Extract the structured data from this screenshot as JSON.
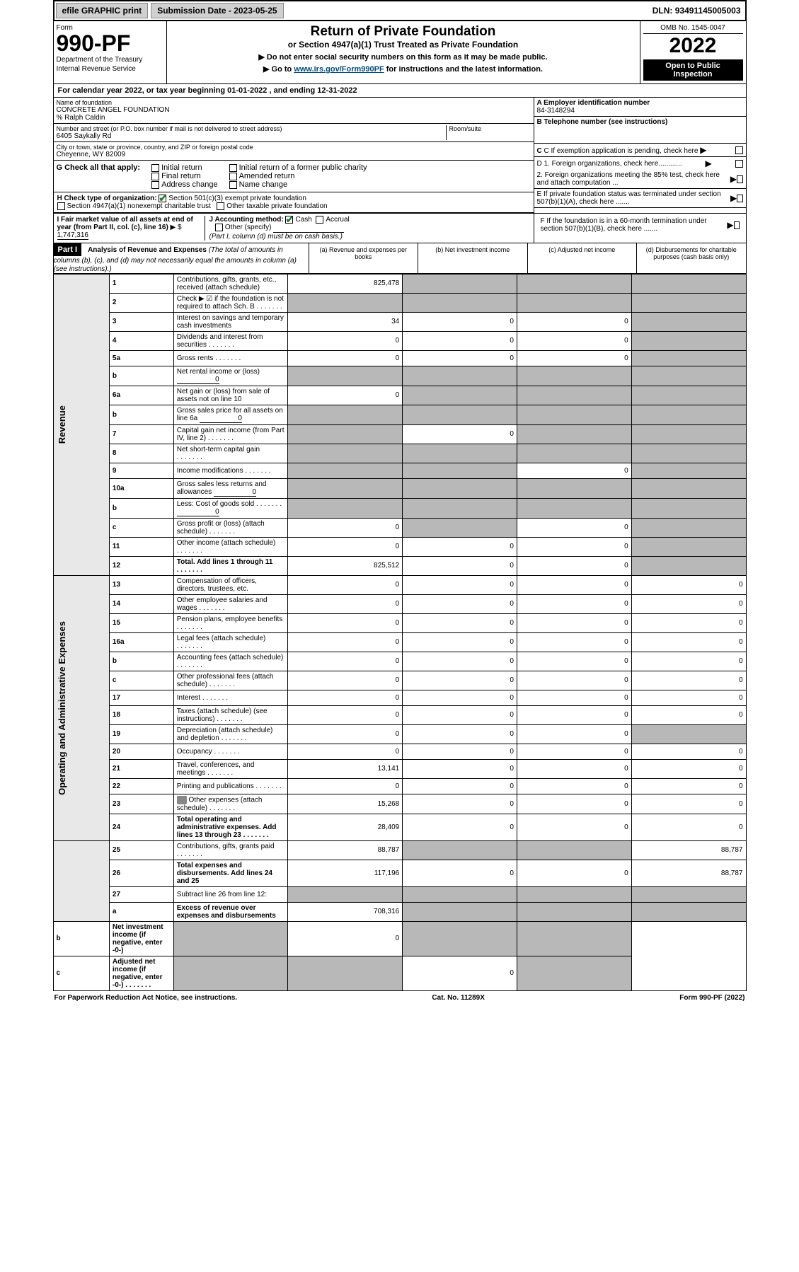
{
  "topbar": {
    "efile": "efile GRAPHIC print",
    "submission": "Submission Date - 2023-05-25",
    "dln": "DLN: 93491145005003"
  },
  "header": {
    "form_label": "Form",
    "form_number": "990-PF",
    "dept": "Department of the Treasury",
    "irs": "Internal Revenue Service",
    "title": "Return of Private Foundation",
    "subtitle": "or Section 4947(a)(1) Trust Treated as Private Foundation",
    "instr1": "▶ Do not enter social security numbers on this form as it may be made public.",
    "instr2_pre": "▶ Go to ",
    "instr2_link": "www.irs.gov/Form990PF",
    "instr2_post": " for instructions and the latest information.",
    "omb": "OMB No. 1545-0047",
    "year": "2022",
    "open": "Open to Public Inspection"
  },
  "cal_year": "For calendar year 2022, or tax year beginning 01-01-2022             , and ending 12-31-2022",
  "info": {
    "name_lbl": "Name of foundation",
    "name": "CONCRETE ANGEL FOUNDATION",
    "care": "% Ralph Caldin",
    "addr_lbl": "Number and street (or P.O. box number if mail is not delivered to street address)",
    "addr": "6405 Saykally Rd",
    "room_lbl": "Room/suite",
    "city_lbl": "City or town, state or province, country, and ZIP or foreign postal code",
    "city": "Cheyenne, WY  82009",
    "a_lbl": "A Employer identification number",
    "a_val": "84-3148294",
    "b_lbl": "B Telephone number (see instructions)",
    "c_lbl": "C If exemption application is pending, check here",
    "d1": "D 1. Foreign organizations, check here............",
    "d2": "2. Foreign organizations meeting the 85% test, check here and attach computation ...",
    "e_lbl": "E  If private foundation status was terminated under section 507(b)(1)(A), check here .......",
    "f_lbl": "F  If the foundation is in a 60-month termination under section 507(b)(1)(B), check here ......."
  },
  "secG": {
    "label": "G Check all that apply:",
    "opts": [
      "Initial return",
      "Final return",
      "Address change",
      "Initial return of a former public charity",
      "Amended return",
      "Name change"
    ]
  },
  "secH": {
    "label": "H Check type of organization:",
    "o1": "Section 501(c)(3) exempt private foundation",
    "o2": "Section 4947(a)(1) nonexempt charitable trust",
    "o3": "Other taxable private foundation"
  },
  "secI": {
    "label": "I Fair market value of all assets at end of year (from Part II, col. (c), line 16)",
    "val": "1,747,316"
  },
  "secJ": {
    "label": "J Accounting method:",
    "cash": "Cash",
    "accrual": "Accrual",
    "other": "Other (specify)",
    "note": "(Part I, column (d) must be on cash basis.)"
  },
  "part1": {
    "tag": "Part I",
    "title": "Analysis of Revenue and Expenses",
    "note": "(The total of amounts in columns (b), (c), and (d) may not necessarily equal the amounts in column (a) (see instructions).)",
    "colA": "(a)   Revenue and expenses per books",
    "colB": "(b)   Net investment income",
    "colC": "(c)  Adjusted net income",
    "colD": "(d)  Disbursements for charitable purposes (cash basis only)"
  },
  "side_rev": "Revenue",
  "side_exp": "Operating and Administrative Expenses",
  "rows": [
    {
      "n": "1",
      "d": "Contributions, gifts, grants, etc., received (attach schedule)",
      "a": "825,478",
      "b": "",
      "c": "",
      "dd": "",
      "ga": false,
      "gb": true,
      "gc": true,
      "gd": true
    },
    {
      "n": "2",
      "d": "Check ▶ ☑ if the foundation is not required to attach Sch. B",
      "dots": true,
      "a": "",
      "b": "",
      "c": "",
      "dd": "",
      "ga": true,
      "gb": true,
      "gc": true,
      "gd": true
    },
    {
      "n": "3",
      "d": "Interest on savings and temporary cash investments",
      "a": "34",
      "b": "0",
      "c": "0",
      "dd": "",
      "ga": false,
      "gb": false,
      "gc": false,
      "gd": true
    },
    {
      "n": "4",
      "d": "Dividends and interest from securities",
      "dots": true,
      "a": "0",
      "b": "0",
      "c": "0",
      "dd": "",
      "ga": false,
      "gb": false,
      "gc": false,
      "gd": true
    },
    {
      "n": "5a",
      "d": "Gross rents",
      "dots": true,
      "a": "0",
      "b": "0",
      "c": "0",
      "dd": "",
      "ga": false,
      "gb": false,
      "gc": false,
      "gd": true
    },
    {
      "n": "b",
      "d": "Net rental income or (loss)",
      "inline": "0",
      "a": "",
      "b": "",
      "c": "",
      "dd": "",
      "ga": true,
      "gb": true,
      "gc": true,
      "gd": true
    },
    {
      "n": "6a",
      "d": "Net gain or (loss) from sale of assets not on line 10",
      "a": "0",
      "b": "",
      "c": "",
      "dd": "",
      "ga": false,
      "gb": true,
      "gc": true,
      "gd": true
    },
    {
      "n": "b",
      "d": "Gross sales price for all assets on line 6a",
      "inline": "0",
      "a": "",
      "b": "",
      "c": "",
      "dd": "",
      "ga": true,
      "gb": true,
      "gc": true,
      "gd": true
    },
    {
      "n": "7",
      "d": "Capital gain net income (from Part IV, line 2)",
      "dots": true,
      "a": "",
      "b": "0",
      "c": "",
      "dd": "",
      "ga": true,
      "gb": false,
      "gc": true,
      "gd": true
    },
    {
      "n": "8",
      "d": "Net short-term capital gain",
      "dots": true,
      "a": "",
      "b": "",
      "c": "",
      "dd": "",
      "ga": true,
      "gb": true,
      "gc": true,
      "gd": true
    },
    {
      "n": "9",
      "d": "Income modifications",
      "dots": true,
      "a": "",
      "b": "",
      "c": "0",
      "dd": "",
      "ga": true,
      "gb": true,
      "gc": false,
      "gd": true
    },
    {
      "n": "10a",
      "d": "Gross sales less returns and allowances",
      "inline": "0",
      "a": "",
      "b": "",
      "c": "",
      "dd": "",
      "ga": true,
      "gb": true,
      "gc": true,
      "gd": true
    },
    {
      "n": "b",
      "d": "Less: Cost of goods sold",
      "dots": true,
      "inline": "0",
      "a": "",
      "b": "",
      "c": "",
      "dd": "",
      "ga": true,
      "gb": true,
      "gc": true,
      "gd": true
    },
    {
      "n": "c",
      "d": "Gross profit or (loss) (attach schedule)",
      "dots": true,
      "a": "0",
      "b": "",
      "c": "0",
      "dd": "",
      "ga": false,
      "gb": true,
      "gc": false,
      "gd": true
    },
    {
      "n": "11",
      "d": "Other income (attach schedule)",
      "dots": true,
      "a": "0",
      "b": "0",
      "c": "0",
      "dd": "",
      "ga": false,
      "gb": false,
      "gc": false,
      "gd": true
    },
    {
      "n": "12",
      "d": "Total. Add lines 1 through 11",
      "dots": true,
      "bold": true,
      "a": "825,512",
      "b": "0",
      "c": "0",
      "dd": "",
      "ga": false,
      "gb": false,
      "gc": false,
      "gd": true
    },
    {
      "n": "13",
      "d": "Compensation of officers, directors, trustees, etc.",
      "a": "0",
      "b": "0",
      "c": "0",
      "dd": "0",
      "exp": true
    },
    {
      "n": "14",
      "d": "Other employee salaries and wages",
      "dots": true,
      "a": "0",
      "b": "0",
      "c": "0",
      "dd": "0",
      "exp": true
    },
    {
      "n": "15",
      "d": "Pension plans, employee benefits",
      "dots": true,
      "a": "0",
      "b": "0",
      "c": "0",
      "dd": "0",
      "exp": true
    },
    {
      "n": "16a",
      "d": "Legal fees (attach schedule)",
      "dots": true,
      "a": "0",
      "b": "0",
      "c": "0",
      "dd": "0",
      "exp": true
    },
    {
      "n": "b",
      "d": "Accounting fees (attach schedule)",
      "dots": true,
      "a": "0",
      "b": "0",
      "c": "0",
      "dd": "0",
      "exp": true
    },
    {
      "n": "c",
      "d": "Other professional fees (attach schedule)",
      "dots": true,
      "a": "0",
      "b": "0",
      "c": "0",
      "dd": "0",
      "exp": true
    },
    {
      "n": "17",
      "d": "Interest",
      "dots": true,
      "a": "0",
      "b": "0",
      "c": "0",
      "dd": "0",
      "exp": true
    },
    {
      "n": "18",
      "d": "Taxes (attach schedule) (see instructions)",
      "dots": true,
      "a": "0",
      "b": "0",
      "c": "0",
      "dd": "0",
      "exp": true
    },
    {
      "n": "19",
      "d": "Depreciation (attach schedule) and depletion",
      "dots": true,
      "a": "0",
      "b": "0",
      "c": "0",
      "dd": "",
      "exp": true,
      "gd": true
    },
    {
      "n": "20",
      "d": "Occupancy",
      "dots": true,
      "a": "0",
      "b": "0",
      "c": "0",
      "dd": "0",
      "exp": true
    },
    {
      "n": "21",
      "d": "Travel, conferences, and meetings",
      "dots": true,
      "a": "13,141",
      "b": "0",
      "c": "0",
      "dd": "0",
      "exp": true
    },
    {
      "n": "22",
      "d": "Printing and publications",
      "dots": true,
      "a": "0",
      "b": "0",
      "c": "0",
      "dd": "0",
      "exp": true
    },
    {
      "n": "23",
      "d": "Other expenses (attach schedule)",
      "dots": true,
      "icon": true,
      "a": "15,268",
      "b": "0",
      "c": "0",
      "dd": "0",
      "exp": true
    },
    {
      "n": "24",
      "d": "Total operating and administrative expenses. Add lines 13 through 23",
      "dots": true,
      "bold": true,
      "a": "28,409",
      "b": "0",
      "c": "0",
      "dd": "0",
      "exp": true
    },
    {
      "n": "25",
      "d": "Contributions, gifts, grants paid",
      "dots": true,
      "a": "88,787",
      "b": "",
      "c": "",
      "dd": "88,787",
      "exp": true,
      "gb": true,
      "gc": true
    },
    {
      "n": "26",
      "d": "Total expenses and disbursements. Add lines 24 and 25",
      "bold": true,
      "a": "117,196",
      "b": "0",
      "c": "0",
      "dd": "88,787",
      "exp": true
    },
    {
      "n": "27",
      "d": "Subtract line 26 from line 12:",
      "a": "",
      "b": "",
      "c": "",
      "dd": "",
      "ga": true,
      "gb": true,
      "gc": true,
      "gd": true
    },
    {
      "n": "a",
      "d": "Excess of revenue over expenses and disbursements",
      "bold": true,
      "a": "708,316",
      "b": "",
      "c": "",
      "dd": "",
      "gb": true,
      "gc": true,
      "gd": true
    },
    {
      "n": "b",
      "d": "Net investment income (if negative, enter -0-)",
      "bold": true,
      "a": "",
      "b": "0",
      "c": "",
      "dd": "",
      "ga": true,
      "gc": true,
      "gd": true
    },
    {
      "n": "c",
      "d": "Adjusted net income (if negative, enter -0-)",
      "dots": true,
      "bold": true,
      "a": "",
      "b": "",
      "c": "0",
      "dd": "",
      "ga": true,
      "gb": true,
      "gd": true
    }
  ],
  "footer": {
    "left": "For Paperwork Reduction Act Notice, see instructions.",
    "mid": "Cat. No. 11289X",
    "right": "Form 990-PF (2022)"
  }
}
